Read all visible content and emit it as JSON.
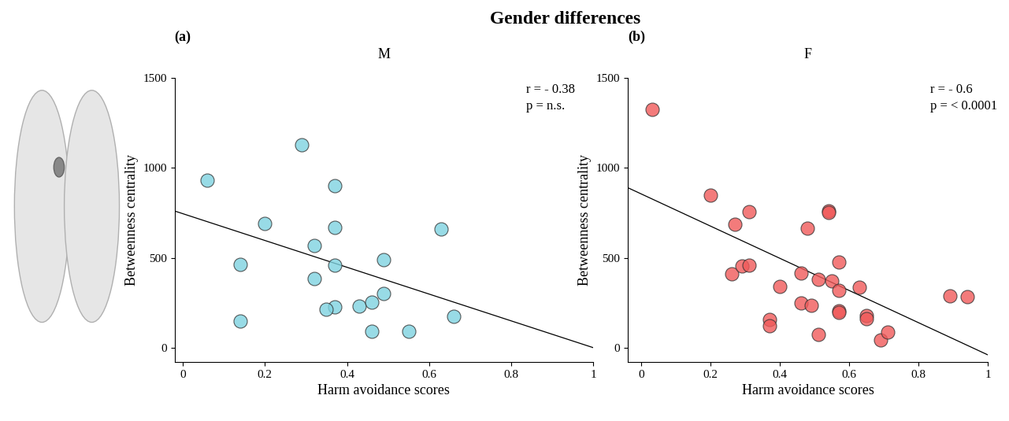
{
  "title": "Gender differences",
  "chart_data": [
    {
      "type": "scatter",
      "label": "(a)",
      "title": "M",
      "annotations": [
        "r = - 0.38",
        "p = n.s."
      ],
      "x_label": "Harm avoidance scores",
      "y_label": "Betweenness centrality",
      "xlim": [
        -0.02,
        1
      ],
      "xticks": [
        0,
        0.2,
        0.4,
        0.6,
        0.8,
        1
      ],
      "ylim": [
        -80,
        1500
      ],
      "yticks": [
        0,
        500,
        1000,
        1500
      ],
      "series": [
        {
          "type": "scatter",
          "color": "#7fd3e0",
          "marker": "o",
          "x": [
            0.06,
            0.29,
            0.2,
            0.14,
            0.14,
            0.32,
            0.32,
            0.37,
            0.37,
            0.37,
            0.37,
            0.35,
            0.43,
            0.46,
            0.49,
            0.49,
            0.46,
            0.55,
            0.63,
            0.66
          ],
          "values": [
            930,
            1130,
            690,
            465,
            150,
            570,
            385,
            900,
            670,
            460,
            225,
            215,
            230,
            255,
            490,
            300,
            90,
            90,
            660,
            175
          ]
        },
        {
          "type": "line",
          "color": "#000000",
          "line_style": "solid",
          "x": [
            -0.02,
            1
          ],
          "values": [
            760,
            0
          ]
        }
      ]
    },
    {
      "type": "scatter",
      "label": "(b)",
      "title": "F",
      "annotations": [
        "r = - 0.6",
        "p = < 0.0001"
      ],
      "x_label": "Harm avoidance scores",
      "y_label": "Betweenness centrality",
      "xlim": [
        -0.04,
        1
      ],
      "xticks": [
        0,
        0.2,
        0.4,
        0.6,
        0.8,
        1
      ],
      "ylim": [
        -80,
        1500
      ],
      "yticks": [
        0,
        500,
        1000,
        1500
      ],
      "series": [
        {
          "type": "scatter",
          "color": "#f05a5a",
          "marker": "o",
          "x": [
            0.03,
            0.2,
            0.27,
            0.31,
            0.26,
            0.29,
            0.31,
            0.4,
            0.37,
            0.37,
            0.46,
            0.48,
            0.46,
            0.49,
            0.51,
            0.51,
            0.54,
            0.54,
            0.55,
            0.57,
            0.57,
            0.57,
            0.57,
            0.63,
            0.65,
            0.65,
            0.69,
            0.71,
            0.89,
            0.94
          ],
          "values": [
            1325,
            850,
            685,
            755,
            410,
            455,
            460,
            340,
            155,
            120,
            415,
            665,
            250,
            235,
            380,
            75,
            760,
            750,
            370,
            475,
            320,
            205,
            195,
            335,
            180,
            160,
            45,
            85,
            290,
            285
          ]
        },
        {
          "type": "line",
          "color": "#000000",
          "line_style": "solid",
          "x": [
            -0.04,
            1
          ],
          "values": [
            890,
            -40
          ]
        }
      ]
    }
  ]
}
